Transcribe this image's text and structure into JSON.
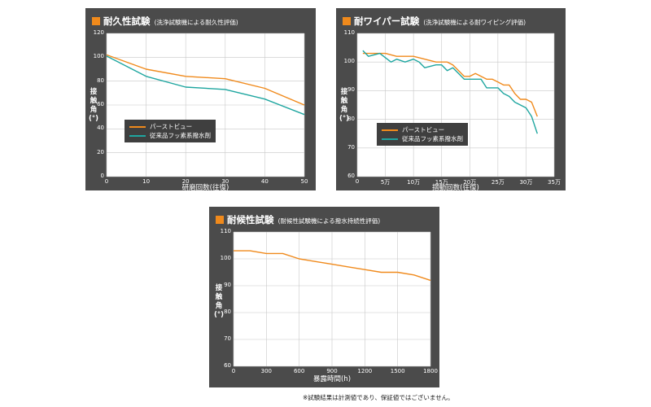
{
  "colors": {
    "series1": "#f08a1c",
    "series2": "#1fa6a0",
    "panel": "#4b4b4b",
    "plot": "#ffffff",
    "grid": "#c8c8c8"
  },
  "chart_data": [
    {
      "type": "line",
      "title": "耐久性試験",
      "subtitle": "(洗浄試験機による耐久性評価)",
      "xlabel": "研磨回数(往復)",
      "ylabel": "接触角(°)",
      "xlim": [
        0,
        50
      ],
      "ylim": [
        0,
        120
      ],
      "xticks": [
        0,
        10,
        20,
        30,
        40,
        50
      ],
      "xtick_labels": [
        "0",
        "10",
        "20",
        "30",
        "40",
        "50"
      ],
      "yticks": [
        0,
        20,
        40,
        60,
        80,
        100,
        120
      ],
      "ytick_labels": [
        "0",
        "20",
        "40",
        "60",
        "80",
        "100",
        "120"
      ],
      "grid": true,
      "legend_position": "bottom-left",
      "series": [
        {
          "name": "パーストビュー",
          "x": [
            0,
            10,
            20,
            30,
            40,
            50
          ],
          "y": [
            102,
            90,
            84,
            82,
            74,
            60
          ]
        },
        {
          "name": "従来品フッ素系撥水剤",
          "x": [
            0,
            10,
            20,
            30,
            40,
            50
          ],
          "y": [
            101,
            84,
            75,
            73,
            65,
            52
          ]
        }
      ]
    },
    {
      "type": "line",
      "title": "耐ワイパー試験",
      "subtitle": "(洗浄試験機による耐ワイピング評価)",
      "xlabel": "摺動回数(往復)",
      "ylabel": "接触角(°)",
      "xlim": [
        0,
        350000
      ],
      "ylim": [
        60,
        110
      ],
      "xticks": [
        0,
        50000,
        100000,
        150000,
        200000,
        250000,
        300000,
        350000
      ],
      "xtick_labels": [
        "0",
        "5万",
        "10万",
        "15万",
        "20万",
        "25万",
        "30万",
        "35万"
      ],
      "yticks": [
        60,
        70,
        80,
        90,
        100,
        110
      ],
      "ytick_labels": [
        "60",
        "70",
        "80",
        "90",
        "100",
        "110"
      ],
      "grid": true,
      "legend_position": "bottom-left",
      "series": [
        {
          "name": "パーストビュー",
          "x": [
            10000,
            30000,
            50000,
            70000,
            90000,
            100000,
            120000,
            140000,
            150000,
            160000,
            170000,
            180000,
            190000,
            200000,
            210000,
            220000,
            230000,
            240000,
            250000,
            260000,
            270000,
            280000,
            290000,
            300000,
            310000,
            320000
          ],
          "y": [
            103,
            103,
            103,
            102,
            102,
            102,
            101,
            100,
            100,
            100,
            99,
            97,
            95,
            95,
            96,
            95,
            94,
            94,
            93,
            92,
            92,
            89,
            87,
            87,
            86,
            81
          ]
        },
        {
          "name": "従来品フッ素系撥水剤",
          "x": [
            10000,
            20000,
            40000,
            60000,
            70000,
            85000,
            100000,
            110000,
            120000,
            140000,
            150000,
            160000,
            170000,
            180000,
            190000,
            200000,
            210000,
            220000,
            230000,
            240000,
            250000,
            260000,
            270000,
            280000,
            290000,
            300000,
            310000,
            320000
          ],
          "y": [
            104,
            102,
            103,
            100,
            101,
            100,
            101,
            100,
            98,
            99,
            99,
            97,
            98,
            96,
            94,
            94,
            94,
            94,
            91,
            91,
            91,
            89,
            88,
            86,
            85,
            84,
            81,
            75
          ]
        }
      ]
    },
    {
      "type": "line",
      "title": "耐候性試験",
      "subtitle": "(耐候性試験機による撥水持続性評価)",
      "xlabel": "暴露時間(h)",
      "ylabel": "接触角(°)",
      "xlim": [
        0,
        1800
      ],
      "ylim": [
        60,
        110
      ],
      "xticks": [
        0,
        300,
        600,
        900,
        1200,
        1500,
        1800
      ],
      "xtick_labels": [
        "0",
        "300",
        "600",
        "900",
        "1200",
        "1500",
        "1800"
      ],
      "yticks": [
        60,
        70,
        80,
        90,
        100,
        110
      ],
      "ytick_labels": [
        "60",
        "70",
        "80",
        "90",
        "100",
        "110"
      ],
      "grid": true,
      "legend_position": "none",
      "series": [
        {
          "name": "",
          "x": [
            0,
            150,
            300,
            450,
            600,
            750,
            900,
            1050,
            1200,
            1350,
            1500,
            1650,
            1800
          ],
          "y": [
            103,
            103,
            102,
            102,
            100,
            99,
            98,
            97,
            96,
            95,
            95,
            94,
            92
          ]
        }
      ]
    }
  ],
  "footnote": "※試験結果は計測値であり、保証値ではございません。"
}
